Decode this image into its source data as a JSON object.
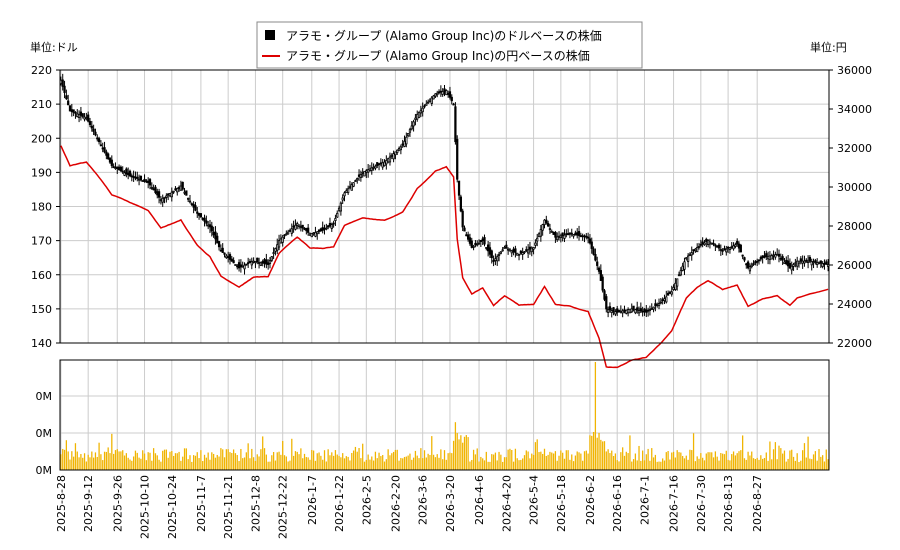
{
  "chart_data": {
    "type": "candlestick+line+bar",
    "legend": {
      "placement": "top-center",
      "entries": [
        {
          "label": "アラモ・グループ (Alamo Group Inc)のドルベースの株価",
          "marker": "black-square"
        },
        {
          "label": "アラモ・グループ (Alamo Group Inc)の円ベースの株価",
          "marker": "red-line",
          "color": "#dd0000"
        }
      ]
    },
    "left_axis": {
      "unit_label": "単位:ドル",
      "ylim": [
        140,
        220
      ],
      "ticks": [
        140,
        150,
        160,
        170,
        180,
        190,
        200,
        210,
        220
      ]
    },
    "right_axis": {
      "unit_label": "単位:円",
      "ylim": [
        22000,
        36000
      ],
      "ticks": [
        22000,
        24000,
        26000,
        28000,
        30000,
        32000,
        34000,
        36000
      ]
    },
    "volume_axis": {
      "tick_labels": [
        "0M",
        "0M",
        "0M"
      ]
    },
    "x_tick_labels": [
      "2025-8-28",
      "2025-9-12",
      "2025-9-26",
      "2025-10-10",
      "2025-10-24",
      "2025-11-7",
      "2025-11-21",
      "2025-12-8",
      "2025-12-22",
      "2026-1-7",
      "2026-1-22",
      "2026-2-5",
      "2026-2-20",
      "2026-3-6",
      "2026-3-20",
      "2026-4-6",
      "2026-4-20",
      "2026-5-4",
      "2026-5-18",
      "2026-6-2",
      "2026-6-16",
      "2026-7-1",
      "2026-7-16",
      "2026-7-30",
      "2026-8-13",
      "2026-8-27"
    ],
    "grid": true,
    "colors": {
      "candle_up": "#ffffff",
      "candle_down": "#000000",
      "yen_line": "#dd0000",
      "volume": "#f0b400",
      "grid": "#cccccc"
    },
    "close_usd_anchors": [
      [
        0,
        217
      ],
      [
        5,
        208
      ],
      [
        14,
        206
      ],
      [
        22,
        198
      ],
      [
        28,
        192
      ],
      [
        38,
        189
      ],
      [
        48,
        187
      ],
      [
        55,
        182
      ],
      [
        66,
        186
      ],
      [
        75,
        178
      ],
      [
        82,
        174
      ],
      [
        88,
        167
      ],
      [
        98,
        162
      ],
      [
        106,
        164
      ],
      [
        114,
        163
      ],
      [
        120,
        170
      ],
      [
        130,
        175
      ],
      [
        137,
        172
      ],
      [
        144,
        173
      ],
      [
        150,
        175
      ],
      [
        156,
        184
      ],
      [
        166,
        190
      ],
      [
        178,
        193
      ],
      [
        188,
        198
      ],
      [
        196,
        207
      ],
      [
        206,
        213
      ],
      [
        212,
        214
      ],
      [
        216,
        210
      ],
      [
        218,
        188
      ],
      [
        221,
        174
      ],
      [
        226,
        168
      ],
      [
        232,
        170
      ],
      [
        238,
        164
      ],
      [
        244,
        168
      ],
      [
        252,
        166
      ],
      [
        260,
        168
      ],
      [
        266,
        176
      ],
      [
        272,
        171
      ],
      [
        280,
        172
      ],
      [
        290,
        171
      ],
      [
        296,
        161
      ],
      [
        300,
        150
      ],
      [
        306,
        149
      ],
      [
        314,
        150
      ],
      [
        322,
        149
      ],
      [
        330,
        152
      ],
      [
        336,
        155
      ],
      [
        344,
        165
      ],
      [
        350,
        168
      ],
      [
        356,
        170
      ],
      [
        364,
        167
      ],
      [
        372,
        169
      ],
      [
        378,
        162
      ],
      [
        386,
        165
      ],
      [
        394,
        166
      ],
      [
        402,
        161
      ],
      [
        408,
        164
      ],
      [
        416,
        164
      ],
      [
        426,
        163
      ]
    ],
    "close_usd_approx": [
      217.0,
      215.2,
      213.4,
      211.6,
      209.8,
      208.0,
      207.8,
      207.6,
      207.3,
      207.1,
      206.9,
      206.7,
      206.4,
      206.2,
      206.0,
      205.0,
      204.0,
      203.0,
      202.0,
      201.0,
      200.0,
      199.0,
      198.0,
      197.0,
      196.0,
      195.0,
      194.0,
      193.0,
      192.0,
      191.7,
      191.4,
      191.1,
      190.8,
      190.5,
      190.2,
      189.9,
      189.6,
      189.3,
      189.0,
      188.8,
      188.6,
      188.4,
      188.2,
      188.0,
      187.8,
      187.6,
      187.4,
      187.2,
      187.0,
      186.3,
      185.6,
      184.9,
      184.1,
      183.4,
      182.7,
      182.0,
      182.4,
      182.7,
      183.1,
      183.5,
      183.8,
      184.2,
      184.5,
      184.9,
      185.3,
      185.6,
      186.0,
      185.1,
      184.2,
      183.3,
      182.4,
      181.6,
      180.7,
      179.8,
      178.9,
      178.0,
      177.4,
      176.9,
      176.3,
      175.7,
      175.1,
      174.6,
      174.0,
      172.8,
      171.7,
      170.5,
      169.3,
      168.2,
      167.0,
      166.5,
      166.0,
      165.5,
      165.0,
      164.5,
      164.0,
      163.5,
      163.0,
      162.5,
      162.0,
      162.3,
      162.5,
      162.8,
      163.0,
      163.3,
      163.5,
      163.8,
      164.0,
      163.9,
      163.8,
      163.6,
      163.5,
      163.4,
      163.3,
      163.1,
      163.0,
      164.2,
      165.3,
      166.5,
      167.7,
      168.8,
      170.0,
      170.5,
      171.0,
      171.5,
      172.0,
      172.5,
      173.0,
      173.5,
      174.0,
      174.5,
      175.0,
      174.6,
      174.1,
      173.7,
      173.3,
      172.9,
      172.4,
      172.0,
      172.1,
      172.3,
      172.4,
      172.6,
      172.7,
      172.9,
      173.0,
      173.3,
      173.7,
      174.0,
      174.3,
      174.7,
      175.0,
      176.5,
      178.0,
      179.5,
      181.0,
      182.5,
      184.0,
      184.6,
      185.2,
      185.8,
      186.4,
      187.0,
      187.6,
      188.2,
      188.8,
      189.4,
      190.0,
      190.3,
      190.5,
      190.8,
      191.0,
      191.3,
      191.5,
      191.8,
      192.0,
      192.3,
      192.5,
      192.8,
      193.0,
      193.5,
      194.0,
      194.5,
      195.0,
      195.5,
      196.0,
      196.5,
      197.0,
      197.5,
      198.0,
      199.1,
      200.3,
      201.4,
      202.5,
      203.6,
      204.8,
      205.9,
      207.0,
      207.6,
      208.2,
      208.8,
      209.4,
      210.0,
      210.6,
      211.2,
      211.8,
      212.4,
      213.0,
      213.2,
      213.3,
      213.5,
      213.7,
      213.8,
      214.0,
      213.0,
      212.0,
      211.0,
      210.0,
      199.0,
      188.0,
      183.3,
      178.7,
      174.0,
      172.8,
      171.6,
      170.4,
      169.2,
      168.0,
      168.3,
      168.7,
      169.0,
      169.3,
      169.7,
      170.0,
      169.0,
      168.0,
      167.0,
      166.0,
      165.0,
      164.0,
      164.7,
      165.3,
      166.0,
      166.7,
      167.3,
      168.0,
      167.8,
      167.5,
      167.3,
      167.0,
      166.8,
      166.5,
      166.3,
      166.0,
      166.3,
      166.5,
      166.8,
      167.0,
      167.3,
      167.5,
      167.8,
      168.0,
      169.3,
      170.7,
      172.0,
      173.3,
      174.7,
      176.0,
      175.2,
      174.3,
      173.5,
      172.7,
      171.8,
      171.0,
      171.1,
      171.3,
      171.4,
      171.5,
      171.6,
      171.8,
      171.9,
      172.0,
      171.9,
      171.8,
      171.7,
      171.6,
      171.5,
      171.4,
      171.3,
      171.2,
      171.1,
      171.0,
      169.3,
      167.7,
      166.0,
      164.3,
      162.7,
      161.0,
      158.3,
      155.5,
      152.8,
      150.0,
      149.8,
      149.7,
      149.5,
      149.3,
      149.2,
      149.0,
      149.1,
      149.3,
      149.4,
      149.5,
      149.6,
      149.8,
      149.9,
      150.0,
      149.9,
      149.8,
      149.6,
      149.5,
      149.4,
      149.3,
      149.1,
      149.0,
      149.4,
      149.8,
      150.1,
      150.5,
      150.9,
      151.3,
      151.6,
      152.0,
      152.5,
      153.0,
      153.5,
      154.0,
      154.5,
      155.0,
      156.3,
      157.5,
      158.8,
      160.0,
      161.3,
      162.5,
      163.8,
      165.0,
      165.5,
      166.0,
      166.5,
      167.0,
      167.5,
      168.0,
      168.3,
      168.7,
      169.0,
      169.3,
      169.7,
      170.0,
      169.6,
      169.3,
      168.9,
      168.5,
      168.1,
      167.8,
      167.4,
      167.0,
      167.3,
      167.5,
      167.8,
      168.0,
      168.3,
      168.5,
      168.8,
      169.0,
      167.8,
      166.7,
      165.5,
      164.3,
      163.2,
      162.0,
      162.4,
      162.8,
      163.1,
      163.5,
      163.9,
      164.3,
      164.6,
      165.0,
      165.1,
      165.3,
      165.4,
      165.5,
      165.6,
      165.8,
      165.9,
      166.0,
      165.4,
      164.8,
      164.3,
      163.7,
      163.2,
      162.6,
      162.0,
      162.5,
      163.0,
      163.5,
      164.0,
      164.0,
      164.0,
      164.0,
      164.0,
      164.0,
      164.0,
      164.0,
      163.9,
      163.8,
      163.7,
      163.6,
      163.5,
      163.4,
      163.3,
      163.2,
      163.1,
      163.0
    ]
  }
}
